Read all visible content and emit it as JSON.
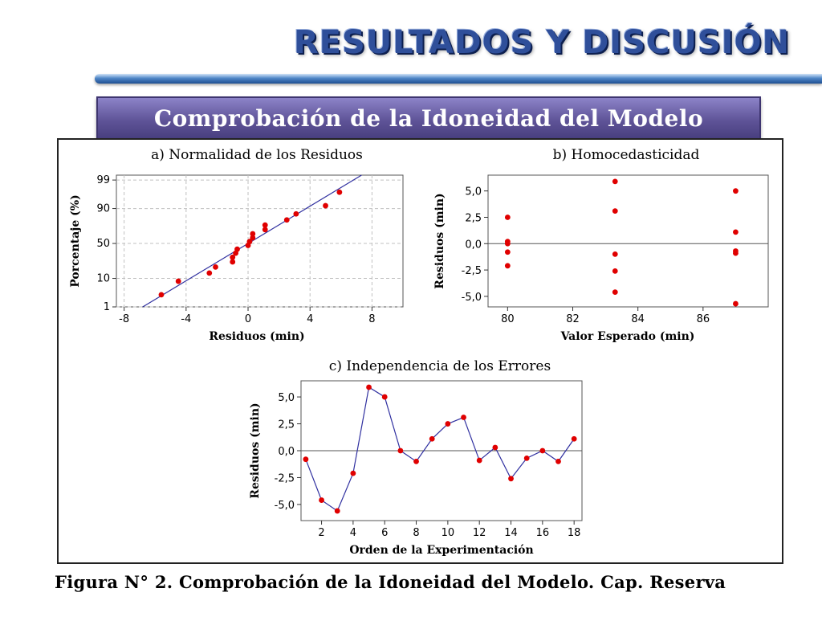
{
  "slide": {
    "title": "RESULTADOS Y DISCUSIÓN",
    "subtitle": "Comprobación de la Idoneidad del Modelo",
    "caption": "Figura N° 2. Comprobación de la Idoneidad del Modelo. Cap. Reserva"
  },
  "colors": {
    "point": "#e00000",
    "line": "#3030a0",
    "grid": "#c0c0c0",
    "title_text": "#2f4f9a",
    "subtitle_bg": "#5e5397"
  },
  "chart_data": [
    {
      "id": "a",
      "type": "scatter",
      "title": "a) Normalidad de los Residuos",
      "xlabel": "Residuos (min)",
      "ylabel": "Porcentaje (%)",
      "xlim": [
        -8.5,
        10.0
      ],
      "xticks": [
        -8,
        -4,
        0,
        4,
        8
      ],
      "yscale": "normal-probability",
      "yticks": [
        1,
        10,
        50,
        90,
        99
      ],
      "grid": true,
      "points": [
        {
          "x": -5.6,
          "y": 3
        },
        {
          "x": -4.5,
          "y": 8.3
        },
        {
          "x": -2.5,
          "y": 13.9
        },
        {
          "x": -2.1,
          "y": 19.4
        },
        {
          "x": -1.0,
          "y": 25
        },
        {
          "x": -1.0,
          "y": 30.6
        },
        {
          "x": -0.8,
          "y": 36.1
        },
        {
          "x": -0.7,
          "y": 41.7
        },
        {
          "x": 0.0,
          "y": 47.2
        },
        {
          "x": 0.1,
          "y": 52.8
        },
        {
          "x": 0.3,
          "y": 58.3
        },
        {
          "x": 0.3,
          "y": 63.9
        },
        {
          "x": 1.1,
          "y": 69.4
        },
        {
          "x": 1.1,
          "y": 75
        },
        {
          "x": 2.5,
          "y": 80.6
        },
        {
          "x": 3.1,
          "y": 86.1
        },
        {
          "x": 5.0,
          "y": 91.7
        },
        {
          "x": 5.9,
          "y": 97
        }
      ],
      "fit_line": {
        "x": [
          -6.8,
          6.8
        ],
        "y": [
          1,
          99
        ]
      }
    },
    {
      "id": "b",
      "type": "scatter",
      "title": "b) Homocedasticidad",
      "xlabel": "Valor Esperado (min)",
      "ylabel": "Residuos (min)",
      "xlim": [
        79.4,
        88.0
      ],
      "ylim": [
        -6.0,
        6.5
      ],
      "xticks": [
        80,
        82,
        84,
        86
      ],
      "yticks": [
        5.0,
        2.5,
        0.0,
        -2.5,
        -5.0
      ],
      "ytick_labels": [
        "5,0",
        "2,5",
        "0,0",
        "-2,5",
        "-5,0"
      ],
      "reference_line": 0,
      "points": [
        {
          "x": 80,
          "y": 2.5
        },
        {
          "x": 80,
          "y": 0.2
        },
        {
          "x": 80,
          "y": 0.0
        },
        {
          "x": 80,
          "y": -0.8
        },
        {
          "x": 80,
          "y": -2.1
        },
        {
          "x": 83.3,
          "y": 5.9
        },
        {
          "x": 83.3,
          "y": 3.1
        },
        {
          "x": 83.3,
          "y": -1.0
        },
        {
          "x": 83.3,
          "y": -2.6
        },
        {
          "x": 83.3,
          "y": -4.6
        },
        {
          "x": 87.0,
          "y": 5.0
        },
        {
          "x": 87.0,
          "y": 1.1
        },
        {
          "x": 87.0,
          "y": -0.7
        },
        {
          "x": 87.0,
          "y": -0.9
        },
        {
          "x": 87.0,
          "y": -5.7
        }
      ]
    },
    {
      "id": "c",
      "type": "line",
      "title": "c) Independencia de los Errores",
      "xlabel": "Orden de la Experimentación",
      "ylabel": "Residuos (min)",
      "xlim": [
        0.7,
        18.5
      ],
      "ylim": [
        -6.5,
        6.5
      ],
      "xticks": [
        2,
        4,
        6,
        8,
        10,
        12,
        14,
        16,
        18
      ],
      "yticks": [
        5.0,
        2.5,
        0.0,
        -2.5,
        -5.0
      ],
      "ytick_labels": [
        "5,0",
        "2,5",
        "0,0",
        "-2,5",
        "-5,0"
      ],
      "reference_line": 0,
      "x": [
        1,
        2,
        3,
        4,
        5,
        6,
        7,
        8,
        9,
        10,
        11,
        12,
        13,
        14,
        15,
        16,
        17,
        18
      ],
      "y": [
        -0.8,
        -4.6,
        -5.6,
        -2.1,
        5.9,
        5.0,
        0.0,
        -1.0,
        1.1,
        2.5,
        3.1,
        -0.9,
        0.3,
        -2.6,
        -0.7,
        0.0,
        -1.0,
        1.1
      ]
    }
  ]
}
